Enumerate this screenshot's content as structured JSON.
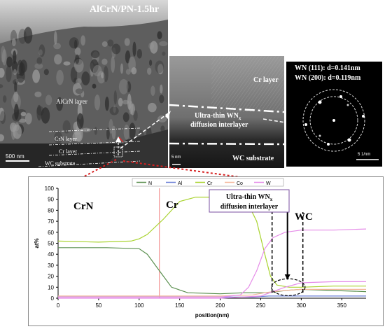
{
  "tem_left": {
    "title": "AlCrN/PN-1.5hr",
    "layers": [
      "AlCrN layer",
      "CrN layer",
      "Cr layer",
      "WC substrate"
    ],
    "scale_bar": "500 nm"
  },
  "tem_mid": {
    "cr_layer": "Cr layer",
    "interlayer_line1": "Ultra-thin WN",
    "interlayer_sub": "x",
    "interlayer_line2": "diffusion interlayer",
    "wc_substrate": "WC substrate",
    "scale_bar": "5 nm"
  },
  "saed": {
    "line1": "WN (111): d=0.141nm",
    "line2": "WN (200): d=0.119nm",
    "scale_bar": "5 1/nm"
  },
  "colors": {
    "N": "#5a8f4e",
    "Al": "#6b7fd6",
    "Cr": "#a9d32f",
    "Co": "#f4b69b",
    "W": "#e58ce8",
    "callout_arrow": "#d62020",
    "box_border": "#7a4fa0"
  },
  "chart_data": {
    "type": "line",
    "xlabel": "position(nm)",
    "ylabel": "at%",
    "xlim": [
      0,
      380
    ],
    "ylim": [
      0,
      100
    ],
    "xticks": [
      "0",
      "50",
      "100",
      "150",
      "200",
      "250",
      "300",
      "350"
    ],
    "yticks": [
      "0",
      "10",
      "20",
      "30",
      "40",
      "50",
      "60",
      "70",
      "80",
      "90",
      "100"
    ],
    "region_labels": [
      "CrN",
      "Cr",
      "WC"
    ],
    "annotation_line1": "Ultra-thin WN",
    "annotation_sub": "x",
    "annotation_line2": "diffusion interlayer",
    "vertical_marker_x": 125,
    "series": [
      {
        "name": "N",
        "x": [
          0,
          20,
          60,
          100,
          110,
          120,
          130,
          140,
          160,
          200,
          230,
          250,
          260,
          270,
          280,
          300,
          340,
          380
        ],
        "y": [
          46,
          46,
          46,
          45,
          40,
          30,
          20,
          10,
          5,
          4,
          5,
          5,
          5,
          6,
          7,
          8,
          7,
          6
        ]
      },
      {
        "name": "Al",
        "x": [
          0,
          50,
          100,
          150,
          200,
          240,
          260,
          280,
          300,
          340,
          380
        ],
        "y": [
          1,
          1,
          1,
          1,
          1,
          1,
          2,
          2,
          2,
          2,
          2
        ]
      },
      {
        "name": "Cr",
        "x": [
          0,
          50,
          90,
          100,
          110,
          130,
          150,
          170,
          200,
          220,
          235,
          245,
          255,
          262,
          270,
          285,
          300,
          340,
          380
        ],
        "y": [
          52,
          51,
          52,
          54,
          58,
          72,
          88,
          92,
          92,
          91,
          85,
          70,
          40,
          20,
          12,
          10,
          10,
          11,
          11
        ]
      },
      {
        "name": "Co",
        "x": [
          0,
          100,
          200,
          240,
          255,
          265,
          280,
          300,
          340,
          380
        ],
        "y": [
          2,
          2,
          2,
          3,
          5,
          6,
          7,
          8,
          8,
          8
        ]
      },
      {
        "name": "W",
        "x": [
          0,
          100,
          200,
          225,
          235,
          245,
          255,
          265,
          280,
          300,
          340,
          380
        ],
        "y": [
          1,
          1,
          1,
          3,
          10,
          25,
          45,
          55,
          60,
          62,
          62,
          63
        ]
      },
      {
        "name": "W",
        "x": [
          0,
          200,
          250,
          265,
          280,
          300,
          340,
          380
        ],
        "y": [
          0,
          0,
          2,
          6,
          10,
          14,
          15,
          15
        ]
      }
    ]
  }
}
